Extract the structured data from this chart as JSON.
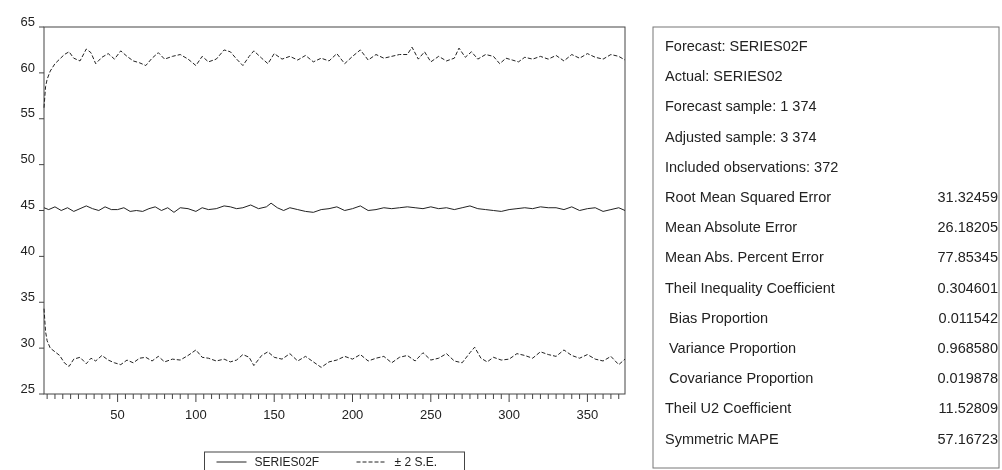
{
  "chart_data": [
    {
      "type": "line",
      "xlim": [
        3,
        374
      ],
      "ylim": [
        25,
        65
      ],
      "xticks": [
        {
          "value": 5,
          "label": null
        },
        {
          "value": 10,
          "label": null
        },
        {
          "value": 15,
          "label": null
        },
        {
          "value": 20,
          "label": null
        },
        {
          "value": 25,
          "label": null
        },
        {
          "value": 30,
          "label": null
        },
        {
          "value": 35,
          "label": null
        },
        {
          "value": 40,
          "label": null
        },
        {
          "value": 45,
          "label": null
        },
        50,
        {
          "value": 55,
          "label": null
        },
        {
          "value": 60,
          "label": null
        },
        {
          "value": 65,
          "label": null
        },
        {
          "value": 70,
          "label": null
        },
        {
          "value": 75,
          "label": null
        },
        {
          "value": 80,
          "label": null
        },
        {
          "value": 85,
          "label": null
        },
        {
          "value": 90,
          "label": null
        },
        {
          "value": 95,
          "label": null
        },
        100,
        {
          "value": 105,
          "label": null
        },
        {
          "value": 110,
          "label": null
        },
        {
          "value": 115,
          "label": null
        },
        {
          "value": 120,
          "label": null
        },
        {
          "value": 125,
          "label": null
        },
        {
          "value": 130,
          "label": null
        },
        {
          "value": 135,
          "label": null
        },
        {
          "value": 140,
          "label": null
        },
        {
          "value": 145,
          "label": null
        },
        150,
        {
          "value": 155,
          "label": null
        },
        {
          "value": 160,
          "label": null
        },
        {
          "value": 165,
          "label": null
        },
        {
          "value": 170,
          "label": null
        },
        {
          "value": 175,
          "label": null
        },
        {
          "value": 180,
          "label": null
        },
        {
          "value": 185,
          "label": null
        },
        {
          "value": 190,
          "label": null
        },
        {
          "value": 195,
          "label": null
        },
        200,
        {
          "value": 205,
          "label": null
        },
        {
          "value": 210,
          "label": null
        },
        {
          "value": 215,
          "label": null
        },
        {
          "value": 220,
          "label": null
        },
        {
          "value": 225,
          "label": null
        },
        {
          "value": 230,
          "label": null
        },
        {
          "value": 235,
          "label": null
        },
        {
          "value": 240,
          "label": null
        },
        {
          "value": 245,
          "label": null
        },
        250,
        {
          "value": 255,
          "label": null
        },
        {
          "value": 260,
          "label": null
        },
        {
          "value": 265,
          "label": null
        },
        {
          "value": 270,
          "label": null
        },
        {
          "value": 275,
          "label": null
        },
        {
          "value": 280,
          "label": null
        },
        {
          "value": 285,
          "label": null
        },
        {
          "value": 290,
          "label": null
        },
        {
          "value": 295,
          "label": null
        },
        300,
        {
          "value": 305,
          "label": null
        },
        {
          "value": 310,
          "label": null
        },
        {
          "value": 315,
          "label": null
        },
        {
          "value": 320,
          "label": null
        },
        {
          "value": 325,
          "label": null
        },
        {
          "value": 330,
          "label": null
        },
        {
          "value": 335,
          "label": null
        },
        {
          "value": 340,
          "label": null
        },
        {
          "value": 345,
          "label": null
        },
        350,
        {
          "value": 355,
          "label": null
        },
        {
          "value": 360,
          "label": null
        },
        {
          "value": 365,
          "label": null
        },
        {
          "value": 370,
          "label": null
        }
      ],
      "yticks": [
        25,
        30,
        35,
        40,
        45,
        50,
        55,
        60,
        65
      ],
      "grid": false,
      "legend": "bottom",
      "series": [
        {
          "name": "SERIES02F",
          "color": "#222222",
          "line_style": "solid",
          "x": [
            3,
            6,
            10,
            14,
            18,
            22,
            26,
            30,
            34,
            38,
            42,
            46,
            50,
            54,
            58,
            62,
            66,
            70,
            74,
            78,
            82,
            86,
            90,
            95,
            100,
            104,
            108,
            113,
            118,
            122,
            126,
            130,
            135,
            140,
            145,
            148,
            152,
            156,
            160,
            165,
            170,
            175,
            180,
            185,
            190,
            195,
            200,
            205,
            210,
            215,
            220,
            225,
            230,
            235,
            240,
            245,
            250,
            255,
            260,
            265,
            270,
            275,
            280,
            285,
            290,
            295,
            300,
            305,
            310,
            315,
            320,
            325,
            330,
            335,
            340,
            345,
            350,
            355,
            360,
            365,
            370,
            374
          ],
          "values": [
            45.3,
            45.1,
            45.4,
            45,
            45.3,
            44.9,
            45.2,
            45.5,
            45.2,
            45,
            45.4,
            45.1,
            45.1,
            45.3,
            44.9,
            45,
            44.9,
            45.2,
            45.4,
            45,
            45.3,
            44.8,
            45.3,
            45.2,
            44.9,
            45.3,
            45.1,
            45.2,
            45.5,
            45.4,
            45.2,
            45.3,
            45.6,
            45.2,
            45.4,
            45.8,
            45.3,
            45,
            45.3,
            45.1,
            44.9,
            44.8,
            45.1,
            45.2,
            45.4,
            45,
            45.2,
            45.5,
            45,
            45.1,
            45.3,
            45.2,
            45.3,
            45.4,
            45.3,
            45.2,
            45.4,
            45.2,
            45.3,
            45.1,
            45.3,
            45.5,
            45.2,
            45.1,
            45,
            44.9,
            45.1,
            45.2,
            45.3,
            45.2,
            45.4,
            45.3,
            45.3,
            45.1,
            45.4,
            45,
            45.2,
            45.3,
            44.9,
            45.1,
            45.3,
            45
          ]
        },
        {
          "name": "± 2 S.E.",
          "color": "#222222",
          "line_style": "dashed",
          "x": [
            3,
            4,
            5,
            7,
            10,
            13,
            16,
            19,
            22,
            26,
            30,
            33,
            36,
            40,
            44,
            48,
            52,
            56,
            60,
            64,
            68,
            72,
            76,
            80,
            85,
            90,
            95,
            100,
            104,
            108,
            113,
            118,
            122,
            126,
            130,
            134,
            137,
            142,
            146,
            150,
            155,
            160,
            165,
            170,
            175,
            180,
            185,
            190,
            195,
            200,
            205,
            210,
            215,
            220,
            225,
            230,
            235,
            238,
            242,
            246,
            250,
            255,
            260,
            265,
            268,
            272,
            276,
            280,
            285,
            290,
            294,
            298,
            302,
            306,
            310,
            315,
            320,
            325,
            330,
            335,
            340,
            345,
            350,
            355,
            360,
            365,
            370,
            374
          ],
          "values": [
            56.2,
            58.5,
            59.3,
            60.2,
            61,
            61.5,
            62,
            62.3,
            61.6,
            61.3,
            62.6,
            62.2,
            61,
            61.7,
            62.1,
            61.5,
            62.4,
            61.8,
            61.3,
            61.1,
            60.8,
            61.6,
            62.2,
            61.5,
            61.8,
            62,
            61.5,
            60.8,
            61.8,
            61.2,
            61.5,
            62.5,
            62.3,
            61.5,
            60.8,
            61.8,
            62.4,
            61.6,
            61,
            62.1,
            61.5,
            61.8,
            61.4,
            61.9,
            61.2,
            61.6,
            61.3,
            62.1,
            61,
            61.8,
            62.5,
            61.4,
            62,
            61.6,
            61.8,
            62,
            62,
            62.8,
            61.5,
            62.3,
            61.2,
            61.8,
            61.3,
            61.6,
            62.7,
            61.7,
            62.3,
            61.5,
            62,
            61.8,
            61,
            61.6,
            61.4,
            61.2,
            61.7,
            61.5,
            61.8,
            61.5,
            61.9,
            61.3,
            62,
            61.6,
            62.1,
            61.7,
            61.5,
            62,
            61.8,
            61.4
          ]
        },
        {
          "color": "#222222",
          "line_style": "dashed",
          "x": [
            3,
            4,
            5,
            7,
            10,
            13,
            16,
            19,
            22,
            26,
            30,
            33,
            36,
            40,
            44,
            48,
            52,
            56,
            60,
            64,
            68,
            72,
            76,
            80,
            85,
            90,
            95,
            100,
            104,
            108,
            113,
            118,
            122,
            126,
            130,
            134,
            137,
            142,
            146,
            150,
            155,
            160,
            165,
            170,
            175,
            180,
            185,
            190,
            195,
            200,
            205,
            210,
            215,
            220,
            225,
            230,
            235,
            240,
            245,
            250,
            255,
            260,
            265,
            270,
            275,
            278,
            282,
            286,
            290,
            295,
            300,
            305,
            310,
            315,
            320,
            325,
            330,
            335,
            340,
            345,
            350,
            355,
            360,
            365,
            370,
            374
          ],
          "values": [
            34.3,
            31.8,
            30.8,
            30,
            29.6,
            29.2,
            28.4,
            28,
            28.8,
            29,
            28.3,
            28.9,
            28.6,
            29.2,
            28.7,
            28.4,
            28.2,
            28.7,
            28.4,
            28.9,
            29,
            28.6,
            29.1,
            28.5,
            28.8,
            28.7,
            29.2,
            29.8,
            29,
            28.9,
            28.6,
            28.8,
            28.5,
            28.7,
            29.3,
            29,
            28.1,
            29.2,
            29.6,
            29,
            28.8,
            29.4,
            28.6,
            29.1,
            28.5,
            27.9,
            28.5,
            28.7,
            29.1,
            28.8,
            29.3,
            28.6,
            28.9,
            29.1,
            28.4,
            29,
            29.2,
            28.6,
            29.5,
            28.7,
            28.9,
            29.4,
            28.6,
            28.4,
            29.5,
            30.1,
            28.9,
            28.5,
            29,
            28.7,
            28.8,
            29.4,
            29.2,
            28.9,
            29.6,
            29.3,
            29.1,
            29.8,
            29.2,
            28.9,
            29.3,
            28.8,
            28.6,
            29.1,
            28.2,
            28.8
          ]
        }
      ]
    },
    {
      "type": "other",
      "categories": [
        "Forecast: SERIES02F",
        "Actual: SERIES02",
        "Forecast sample: 1 374",
        "Adjusted sample: 3 374",
        "Included observations: 372",
        "Root Mean Squared Error",
        "Mean Absolute Error",
        "Mean Abs. Percent Error",
        "Theil Inequality Coefficient",
        " Bias Proportion",
        " Variance Proportion",
        " Covariance Proportion",
        "Theil U2 Coefficient",
        "Symmetric MAPE"
      ],
      "value_labels": [
        null,
        null,
        null,
        null,
        null,
        "31.32459",
        "26.18205",
        "77.85345",
        "0.304601",
        "0.011542",
        "0.968580",
        "0.019878",
        "11.52809",
        "57.16723"
      ]
    }
  ]
}
